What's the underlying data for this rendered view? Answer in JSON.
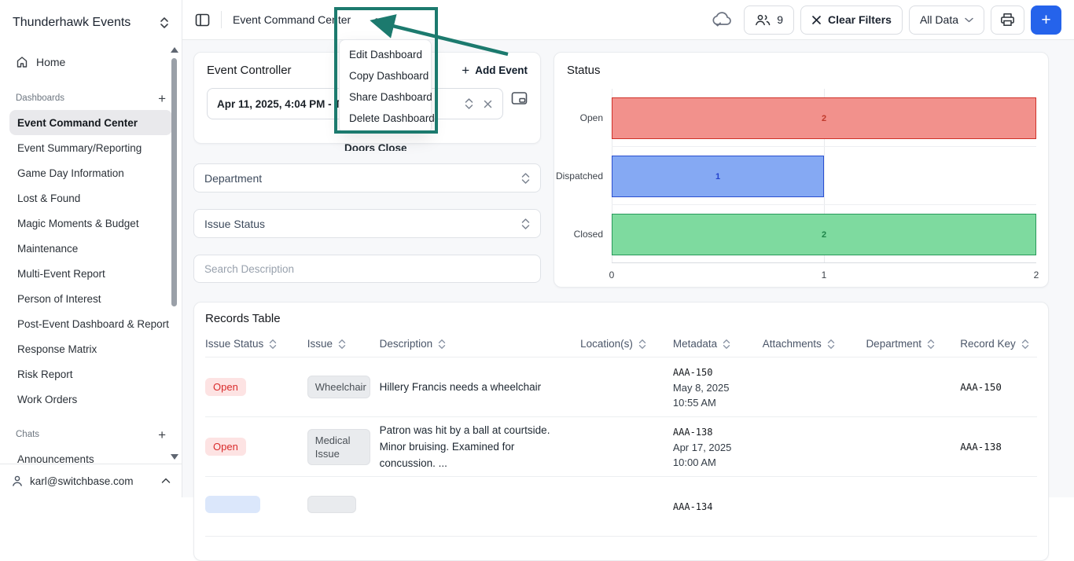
{
  "sidebar": {
    "title": "Thunderhawk Events",
    "home_label": "Home",
    "sections": [
      {
        "label": "Dashboards",
        "items": [
          "Event Command Center",
          "Event Summary/Reporting",
          "Game Day Information",
          "Lost & Found",
          "Magic Moments & Budget",
          "Maintenance",
          "Multi-Event Report",
          "Person of Interest",
          "Post-Event Dashboard & Report",
          "Response Matrix",
          "Risk Report",
          "Work Orders"
        ]
      },
      {
        "label": "Chats",
        "items": [
          "Announcements"
        ]
      }
    ],
    "user_email": "karl@switchbase.com"
  },
  "topbar": {
    "title": "Event Command Center",
    "collab_count": "9",
    "clear_filters_label": "Clear Filters",
    "data_scope_label": "All Data"
  },
  "menu": {
    "items": [
      "Edit Dashboard",
      "Copy Dashboard",
      "Share Dashboard",
      "Delete Dashboard"
    ]
  },
  "event_controller": {
    "title": "Event Controller",
    "add_event_label": "Add Event",
    "date_value": "Apr 11, 2025, 4:04 PM - Thu",
    "obscured_text": "Doors Close"
  },
  "filters": {
    "department_label": "Department",
    "issue_status_label": "Issue Status",
    "search_placeholder": "Search Description"
  },
  "chart_data": {
    "type": "bar",
    "orientation": "horizontal",
    "title": "Status",
    "categories": [
      "Open",
      "Dispatched",
      "Closed"
    ],
    "values": [
      2,
      1,
      2
    ],
    "xlim": [
      0,
      2
    ],
    "xticks": [
      "0",
      "1",
      "2"
    ],
    "grid": "vertical gridline at 1, category separators",
    "bar_colors": [
      {
        "fill": "#f2918c",
        "border": "#cf3028",
        "label": "#c0392b"
      },
      {
        "fill": "#85a9f3",
        "border": "#2a4fd0",
        "label": "#2443cc"
      },
      {
        "fill": "#7eda9f",
        "border": "#27995a",
        "label": "#1e8449"
      }
    ]
  },
  "records_table": {
    "title": "Records Table",
    "columns": [
      "Issue Status",
      "Issue",
      "Description",
      "Location(s)",
      "Metadata",
      "Attachments",
      "Department",
      "Record Key"
    ],
    "rows": [
      {
        "status": "Open",
        "issue": "Wheelchair",
        "description": "Hillery Francis needs a wheelchair",
        "metadata_key": "AAA-150",
        "metadata_date": "May 8, 2025",
        "metadata_time": "10:55 AM",
        "record_key": "AAA-150"
      },
      {
        "status": "Open",
        "issue": "Medical Issue",
        "description": "Patron was hit by a ball at courtside. Minor bruising. Examined for concussion. ...",
        "metadata_key": "AAA-138",
        "metadata_date": "Apr 17, 2025",
        "metadata_time": "10:00 AM",
        "record_key": "AAA-138"
      },
      {
        "status": "",
        "issue": "",
        "description": "",
        "metadata_key": "AAA-134",
        "metadata_date": "",
        "metadata_time": "",
        "record_key": ""
      }
    ]
  },
  "annotation_color": "#1c7a6e"
}
